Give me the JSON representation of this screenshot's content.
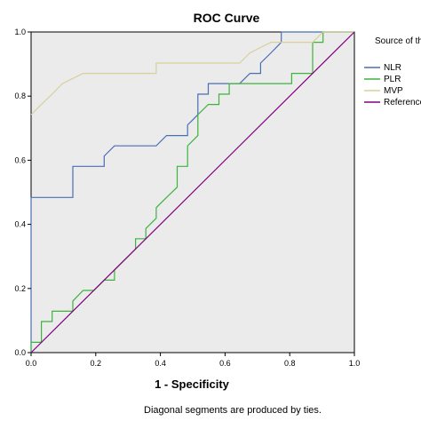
{
  "chart_data": {
    "type": "line",
    "title": "ROC Curve",
    "xlabel": "1 - Specificity",
    "ylabel": "",
    "xlim": [
      0,
      1
    ],
    "ylim": [
      0,
      1
    ],
    "x_ticks": [
      "0.0",
      "0.2",
      "0.4",
      "0.6",
      "0.8",
      "1.0"
    ],
    "y_ticks": [
      "0.0",
      "0.2",
      "0.4",
      "0.6",
      "0.8",
      "1.0"
    ],
    "grid": false,
    "legend_title": "Source of the Curve",
    "legend_position": "right",
    "footnote": "Diagonal segments are produced by ties.",
    "series": [
      {
        "name": "NLR",
        "color": "#4a6eb4",
        "points": [
          [
            0,
            0
          ],
          [
            0,
            0.484
          ],
          [
            0.129,
            0.484
          ],
          [
            0.129,
            0.581
          ],
          [
            0.226,
            0.581
          ],
          [
            0.226,
            0.613
          ],
          [
            0.258,
            0.645
          ],
          [
            0.387,
            0.645
          ],
          [
            0.419,
            0.677
          ],
          [
            0.484,
            0.677
          ],
          [
            0.484,
            0.71
          ],
          [
            0.516,
            0.742
          ],
          [
            0.516,
            0.806
          ],
          [
            0.548,
            0.806
          ],
          [
            0.548,
            0.839
          ],
          [
            0.645,
            0.839
          ],
          [
            0.677,
            0.871
          ],
          [
            0.71,
            0.871
          ],
          [
            0.71,
            0.903
          ],
          [
            0.742,
            0.935
          ],
          [
            0.774,
            0.968
          ],
          [
            0.774,
            1.0
          ],
          [
            1.0,
            1.0
          ]
        ]
      },
      {
        "name": "PLR",
        "color": "#3cb43c",
        "points": [
          [
            0,
            0
          ],
          [
            0,
            0.032
          ],
          [
            0.032,
            0.032
          ],
          [
            0.032,
            0.097
          ],
          [
            0.065,
            0.097
          ],
          [
            0.065,
            0.129
          ],
          [
            0.129,
            0.129
          ],
          [
            0.129,
            0.161
          ],
          [
            0.161,
            0.194
          ],
          [
            0.194,
            0.194
          ],
          [
            0.226,
            0.226
          ],
          [
            0.258,
            0.226
          ],
          [
            0.258,
            0.258
          ],
          [
            0.29,
            0.29
          ],
          [
            0.323,
            0.323
          ],
          [
            0.323,
            0.355
          ],
          [
            0.355,
            0.355
          ],
          [
            0.355,
            0.387
          ],
          [
            0.387,
            0.419
          ],
          [
            0.387,
            0.452
          ],
          [
            0.419,
            0.484
          ],
          [
            0.452,
            0.516
          ],
          [
            0.452,
            0.548
          ],
          [
            0.452,
            0.581
          ],
          [
            0.484,
            0.581
          ],
          [
            0.484,
            0.645
          ],
          [
            0.516,
            0.677
          ],
          [
            0.516,
            0.742
          ],
          [
            0.548,
            0.774
          ],
          [
            0.581,
            0.774
          ],
          [
            0.581,
            0.806
          ],
          [
            0.613,
            0.806
          ],
          [
            0.613,
            0.839
          ],
          [
            0.806,
            0.839
          ],
          [
            0.806,
            0.871
          ],
          [
            0.871,
            0.871
          ],
          [
            0.871,
            0.935
          ],
          [
            0.871,
            0.968
          ],
          [
            0.903,
            0.968
          ],
          [
            0.903,
            1.0
          ],
          [
            1.0,
            1.0
          ]
        ]
      },
      {
        "name": "MVP",
        "color": "#d9cf9a",
        "points": [
          [
            0,
            0.742
          ],
          [
            0.032,
            0.774
          ],
          [
            0.065,
            0.806
          ],
          [
            0.097,
            0.839
          ],
          [
            0.161,
            0.871
          ],
          [
            0.387,
            0.871
          ],
          [
            0.387,
            0.903
          ],
          [
            0.645,
            0.903
          ],
          [
            0.677,
            0.935
          ],
          [
            0.742,
            0.968
          ],
          [
            0.871,
            0.968
          ],
          [
            0.903,
            1.0
          ],
          [
            1.0,
            1.0
          ]
        ]
      },
      {
        "name": "Reference Line",
        "color": "#800080",
        "points": [
          [
            0,
            0
          ],
          [
            1,
            1
          ]
        ]
      }
    ]
  }
}
